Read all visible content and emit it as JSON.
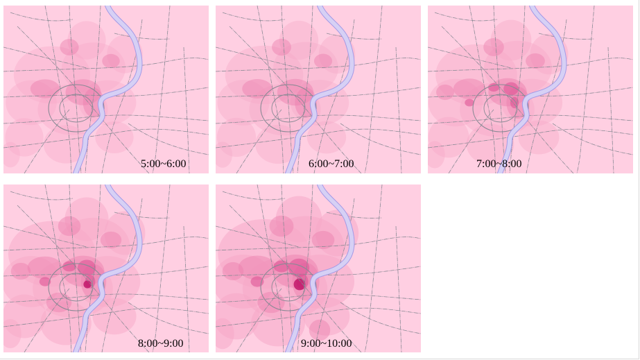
{
  "figure": {
    "panels": [
      {
        "id": "p1",
        "time_label": "5:00~6:00",
        "intensity": 1
      },
      {
        "id": "p2",
        "time_label": "6:00~7:00",
        "intensity": 1.15
      },
      {
        "id": "p3",
        "time_label": "7:00~8:00",
        "intensity": 1.5
      },
      {
        "id": "p4",
        "time_label": "8:00~9:00",
        "intensity": 2.1
      },
      {
        "id": "p5",
        "time_label": "9:00~10:00",
        "intensity": 2.6
      }
    ],
    "colors": {
      "background": "#ffcfe2",
      "density_light": "#f6a9c8",
      "density_mid": "#ec7fae",
      "density_high": "#dd4f92",
      "density_peak": "#c2186b",
      "river": "#d6d0f5",
      "river_edge": "#a49ae6",
      "roads": "#8a8a95"
    }
  }
}
